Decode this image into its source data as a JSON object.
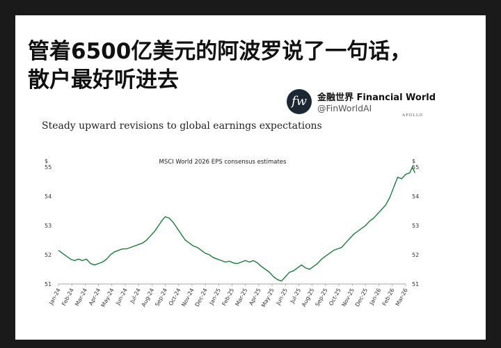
{
  "headline": {
    "line1": "管着6500亿美元的阿波罗说了一句话，",
    "line2": "散户最好听进去"
  },
  "account": {
    "avatar_text": "fw",
    "name": "金融世界 Financial World",
    "handle": "@FinWorldAI"
  },
  "brand": "APOLLO",
  "chart_data": {
    "type": "line",
    "title": "Steady upward revisions to global earnings expectations",
    "inner_title": "MSCI World 2026 EPS consensus estimates",
    "ylabel_left": "$",
    "ylabel_right": "$",
    "ylim": [
      51,
      55
    ],
    "yticks": [
      51,
      52,
      53,
      54,
      55
    ],
    "categories": [
      "Jan-24",
      "Feb-24",
      "Mar-24",
      "Apr-24",
      "May-24",
      "Jun-24",
      "Jul-24",
      "Aug-24",
      "Sep-24",
      "Oct-24",
      "Nov-24",
      "Dec-24",
      "Jan-25",
      "Feb-25",
      "Mar-25",
      "Apr-25",
      "May-25",
      "Jun-25",
      "Jul-25",
      "Aug-25",
      "Sep-25",
      "Oct-25",
      "Nov-25",
      "Dec-25",
      "Jan-26",
      "Feb-26",
      "Mar-26"
    ],
    "series": [
      {
        "color": "#1e7a3c",
        "points": [
          [
            0.0,
            52.15
          ],
          [
            0.3,
            52.05
          ],
          [
            0.6,
            51.95
          ],
          [
            0.9,
            51.85
          ],
          [
            1.2,
            51.8
          ],
          [
            1.5,
            51.85
          ],
          [
            1.8,
            51.8
          ],
          [
            2.1,
            51.85
          ],
          [
            2.4,
            51.7
          ],
          [
            2.7,
            51.65
          ],
          [
            3.0,
            51.7
          ],
          [
            3.3,
            51.75
          ],
          [
            3.6,
            51.85
          ],
          [
            3.9,
            52.0
          ],
          [
            4.2,
            52.1
          ],
          [
            4.5,
            52.15
          ],
          [
            4.8,
            52.2
          ],
          [
            5.1,
            52.2
          ],
          [
            5.4,
            52.25
          ],
          [
            5.7,
            52.3
          ],
          [
            6.0,
            52.35
          ],
          [
            6.3,
            52.4
          ],
          [
            6.6,
            52.5
          ],
          [
            6.9,
            52.65
          ],
          [
            7.2,
            52.8
          ],
          [
            7.5,
            53.0
          ],
          [
            7.8,
            53.2
          ],
          [
            8.0,
            53.3
          ],
          [
            8.3,
            53.25
          ],
          [
            8.6,
            53.1
          ],
          [
            8.9,
            52.9
          ],
          [
            9.2,
            52.7
          ],
          [
            9.5,
            52.5
          ],
          [
            9.8,
            52.4
          ],
          [
            10.1,
            52.3
          ],
          [
            10.4,
            52.25
          ],
          [
            10.7,
            52.15
          ],
          [
            11.0,
            52.05
          ],
          [
            11.3,
            52.0
          ],
          [
            11.6,
            51.9
          ],
          [
            11.9,
            51.85
          ],
          [
            12.2,
            51.8
          ],
          [
            12.5,
            51.75
          ],
          [
            12.8,
            51.78
          ],
          [
            13.1,
            51.72
          ],
          [
            13.4,
            51.7
          ],
          [
            13.7,
            51.75
          ],
          [
            14.0,
            51.8
          ],
          [
            14.3,
            51.75
          ],
          [
            14.6,
            51.8
          ],
          [
            14.9,
            51.72
          ],
          [
            15.2,
            51.6
          ],
          [
            15.5,
            51.5
          ],
          [
            15.8,
            51.4
          ],
          [
            16.1,
            51.25
          ],
          [
            16.4,
            51.15
          ],
          [
            16.7,
            51.1
          ],
          [
            17.0,
            51.25
          ],
          [
            17.3,
            51.4
          ],
          [
            17.6,
            51.45
          ],
          [
            17.9,
            51.55
          ],
          [
            18.2,
            51.65
          ],
          [
            18.5,
            51.55
          ],
          [
            18.8,
            51.5
          ],
          [
            19.1,
            51.6
          ],
          [
            19.4,
            51.7
          ],
          [
            19.7,
            51.85
          ],
          [
            20.0,
            51.95
          ],
          [
            20.3,
            52.05
          ],
          [
            20.6,
            52.15
          ],
          [
            20.9,
            52.2
          ],
          [
            21.2,
            52.25
          ],
          [
            21.5,
            52.4
          ],
          [
            21.8,
            52.55
          ],
          [
            22.1,
            52.7
          ],
          [
            22.4,
            52.8
          ],
          [
            22.7,
            52.9
          ],
          [
            23.0,
            53.0
          ],
          [
            23.3,
            53.15
          ],
          [
            23.6,
            53.25
          ],
          [
            23.9,
            53.4
          ],
          [
            24.2,
            53.55
          ],
          [
            24.5,
            53.7
          ],
          [
            24.8,
            53.95
          ],
          [
            25.1,
            54.3
          ],
          [
            25.4,
            54.65
          ],
          [
            25.7,
            54.6
          ],
          [
            26.0,
            54.75
          ],
          [
            26.3,
            54.8
          ],
          [
            26.5,
            55.0
          ],
          [
            26.7,
            54.8
          ]
        ]
      }
    ]
  }
}
